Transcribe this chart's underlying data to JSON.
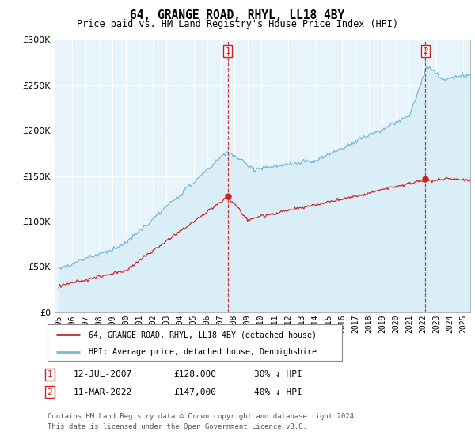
{
  "title": "64, GRANGE ROAD, RHYL, LL18 4BY",
  "subtitle": "Price paid vs. HM Land Registry's House Price Index (HPI)",
  "legend_line1": "64, GRANGE ROAD, RHYL, LL18 4BY (detached house)",
  "legend_line2": "HPI: Average price, detached house, Denbighshire",
  "annotation1_date": "12-JUL-2007",
  "annotation1_price": "£128,000",
  "annotation1_hpi": "30% ↓ HPI",
  "annotation2_date": "11-MAR-2022",
  "annotation2_price": "£147,000",
  "annotation2_hpi": "40% ↓ HPI",
  "footer": "Contains HM Land Registry data © Crown copyright and database right 2024.\nThis data is licensed under the Open Government Licence v3.0.",
  "hpi_color": "#7ab8d9",
  "hpi_fill": "#daeef7",
  "price_color": "#cc2222",
  "vline_color": "#cc2222",
  "background_color": "#ffffff",
  "grid_color": "#cccccc",
  "ylim": [
    0,
    300000
  ],
  "yticks": [
    0,
    50000,
    100000,
    150000,
    200000,
    250000,
    300000
  ],
  "sale1_x": 2007.542,
  "sale1_y": 128000,
  "sale2_x": 2022.167,
  "sale2_y": 147000,
  "xlim_start": 1994.7,
  "xlim_end": 2025.5
}
